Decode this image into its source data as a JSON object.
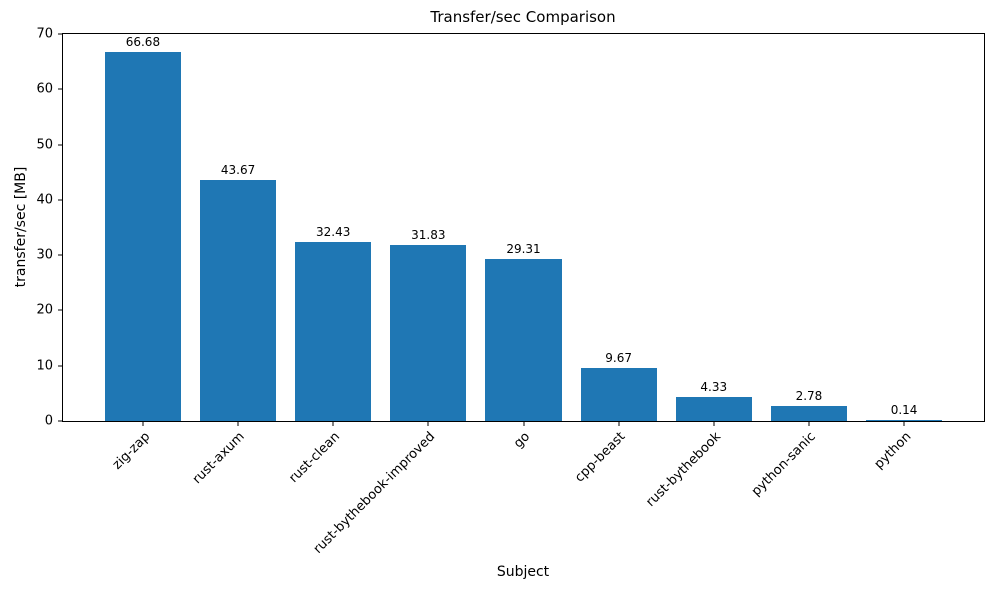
{
  "chart_data": {
    "type": "bar",
    "title": "Transfer/sec Comparison",
    "xlabel": "Subject",
    "ylabel": "transfer/sec [MB]",
    "categories": [
      "zig-zap",
      "rust-axum",
      "rust-clean",
      "rust-bythebook-improved",
      "go",
      "cpp-beast",
      "rust-bythebook",
      "python-sanic",
      "python"
    ],
    "values": [
      66.68,
      43.67,
      32.43,
      31.83,
      29.31,
      9.67,
      4.33,
      2.78,
      0.14
    ],
    "value_labels": [
      "66.68",
      "43.67",
      "32.43",
      "31.83",
      "29.31",
      "9.67",
      "4.33",
      "2.78",
      "0.14"
    ],
    "ylim": [
      0,
      70
    ],
    "yticks": [
      0,
      10,
      20,
      30,
      40,
      50,
      60,
      70
    ],
    "bar_color": "#1f77b4",
    "bar_width_fraction": 0.8,
    "grid": false,
    "legend_position": "none"
  }
}
